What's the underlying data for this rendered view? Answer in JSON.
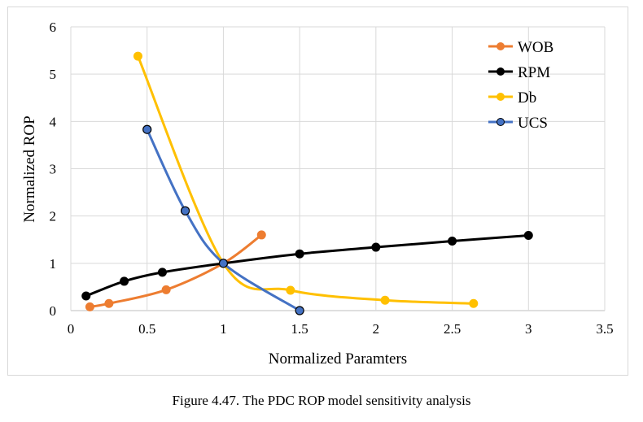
{
  "caption": "Figure 4.47. The PDC ROP model sensitivity analysis",
  "chart_data": {
    "type": "scatter",
    "smooth": true,
    "title": "",
    "xlabel": "Normalized Paramters",
    "ylabel": "Normalized ROP",
    "xlim": [
      0,
      3.5
    ],
    "ylim": [
      0,
      6
    ],
    "xticks": [
      "0",
      "0.5",
      "1",
      "1.5",
      "2",
      "2.5",
      "3",
      "3.5"
    ],
    "yticks": [
      "0",
      "1",
      "2",
      "3",
      "4",
      "5",
      "6"
    ],
    "grid": "horizontal and vertical major gridlines",
    "legend_position": "top-right",
    "series": [
      {
        "name": "WOB",
        "color": "#ed7d31",
        "x": [
          0.125,
          0.25,
          0.625,
          1.0,
          1.25
        ],
        "y": [
          0.08,
          0.15,
          0.44,
          1.0,
          1.6
        ]
      },
      {
        "name": "RPM",
        "color": "#000000",
        "x": [
          0.1,
          0.35,
          0.6,
          1.0,
          1.5,
          2.0,
          2.5,
          3.0
        ],
        "y": [
          0.31,
          0.62,
          0.81,
          1.0,
          1.2,
          1.34,
          1.47,
          1.59
        ]
      },
      {
        "name": "Db",
        "color": "#ffc000",
        "x": [
          0.44,
          1.0,
          1.44,
          2.06,
          2.64
        ],
        "y": [
          5.38,
          1.0,
          0.43,
          0.22,
          0.15
        ]
      },
      {
        "name": "UCS",
        "color": "#4472c4",
        "x": [
          0.5,
          0.75,
          1.0,
          1.5
        ],
        "y": [
          3.83,
          2.11,
          1.0,
          0.0
        ]
      }
    ]
  }
}
